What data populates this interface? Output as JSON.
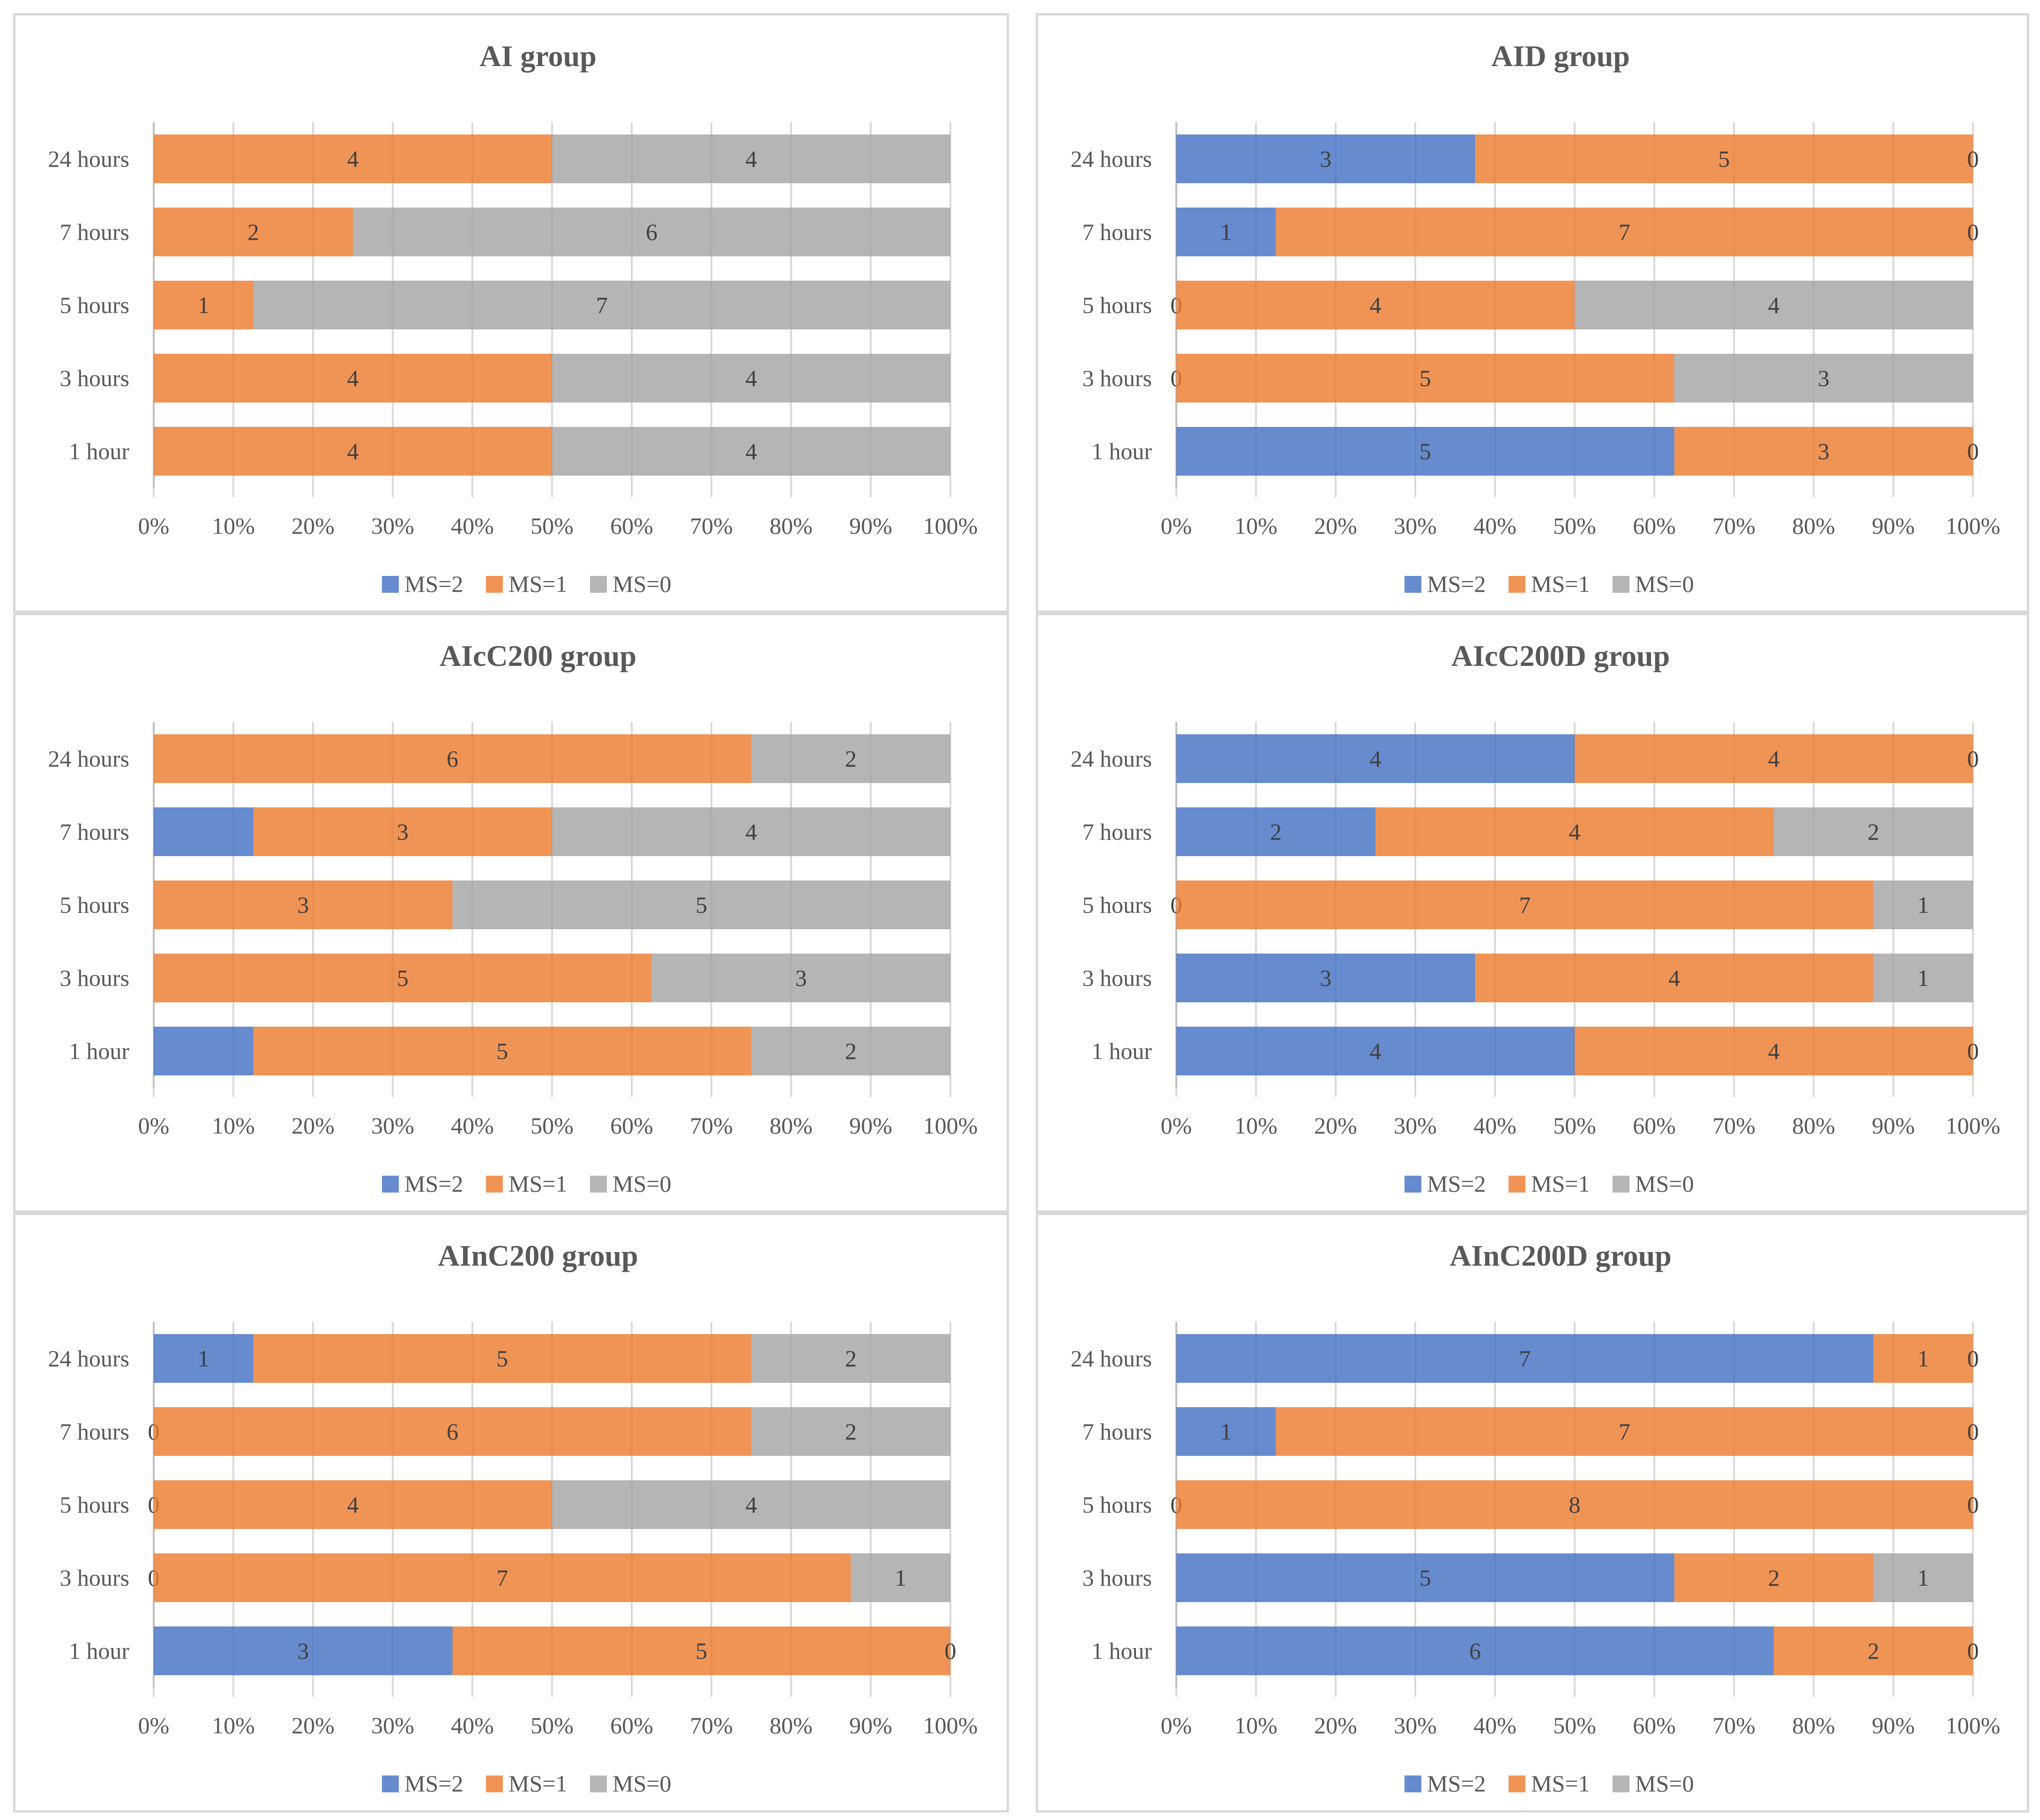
{
  "axis_ticks": [
    "0%",
    "10%",
    "20%",
    "30%",
    "40%",
    "50%",
    "60%",
    "70%",
    "80%",
    "90%",
    "100%"
  ],
  "legend": [
    {
      "label": "MS=2",
      "color": "#4472c4"
    },
    {
      "label": "MS=1",
      "color": "#ed7d31"
    },
    {
      "label": "MS=0",
      "color": "#a5a5a5"
    }
  ],
  "chart_data": [
    {
      "type": "bar",
      "stacked": "percent",
      "orientation": "horizontal",
      "title": "AI group",
      "categories": [
        "24 hours",
        "7 hours",
        "5 hours",
        "3 hours",
        "1 hour"
      ],
      "series": [
        {
          "name": "MS=2",
          "values": [
            null,
            null,
            null,
            null,
            null
          ],
          "labels": [
            "",
            "",
            "",
            "",
            ""
          ]
        },
        {
          "name": "MS=1",
          "values": [
            4,
            2,
            1,
            4,
            4
          ],
          "labels": [
            "4",
            "2",
            "1",
            "4",
            "4"
          ]
        },
        {
          "name": "MS=0",
          "values": [
            4,
            6,
            7,
            4,
            4
          ],
          "labels": [
            "4",
            "6",
            "7",
            "4",
            "4"
          ]
        }
      ],
      "xlim": [
        0,
        100
      ],
      "legend": "bottom"
    },
    {
      "type": "bar",
      "stacked": "percent",
      "orientation": "horizontal",
      "title": "AID group",
      "categories": [
        "24 hours",
        "7 hours",
        "5 hours",
        "3 hours",
        "1 hour"
      ],
      "series": [
        {
          "name": "MS=2",
          "values": [
            3,
            1,
            0,
            0,
            5
          ],
          "labels": [
            "3",
            "1",
            "0",
            "0",
            "5"
          ]
        },
        {
          "name": "MS=1",
          "values": [
            5,
            7,
            4,
            5,
            3
          ],
          "labels": [
            "5",
            "7",
            "4",
            "5",
            "3"
          ]
        },
        {
          "name": "MS=0",
          "values": [
            0,
            0,
            4,
            3,
            0
          ],
          "labels": [
            "0",
            "0",
            "4",
            "3",
            "0"
          ]
        }
      ],
      "xlim": [
        0,
        100
      ],
      "legend": "bottom"
    },
    {
      "type": "bar",
      "stacked": "percent",
      "orientation": "horizontal",
      "title": "AIcC200 group",
      "categories": [
        "24 hours",
        "7 hours",
        "5 hours",
        "3 hours",
        "1 hour"
      ],
      "series": [
        {
          "name": "MS=2",
          "values": [
            null,
            1,
            null,
            null,
            1
          ],
          "labels": [
            "",
            "",
            "",
            "",
            ""
          ]
        },
        {
          "name": "MS=1",
          "values": [
            6,
            3,
            3,
            5,
            5
          ],
          "labels": [
            "6",
            "3",
            "3",
            "5",
            "5"
          ]
        },
        {
          "name": "MS=0",
          "values": [
            2,
            4,
            5,
            3,
            2
          ],
          "labels": [
            "2",
            "4",
            "5",
            "3",
            "2"
          ]
        }
      ],
      "xlim": [
        0,
        100
      ],
      "legend": "bottom"
    },
    {
      "type": "bar",
      "stacked": "percent",
      "orientation": "horizontal",
      "title": "AIcC200D group",
      "categories": [
        "24 hours",
        "7 hours",
        "5 hours",
        "3 hours",
        "1 hour"
      ],
      "series": [
        {
          "name": "MS=2",
          "values": [
            4,
            2,
            0,
            3,
            4
          ],
          "labels": [
            "4",
            "2",
            "0",
            "3",
            "4"
          ]
        },
        {
          "name": "MS=1",
          "values": [
            4,
            4,
            7,
            4,
            4
          ],
          "labels": [
            "4",
            "4",
            "7",
            "4",
            "4"
          ]
        },
        {
          "name": "MS=0",
          "values": [
            0,
            2,
            1,
            1,
            0
          ],
          "labels": [
            "0",
            "2",
            "1",
            "1",
            "0"
          ]
        }
      ],
      "xlim": [
        0,
        100
      ],
      "legend": "bottom"
    },
    {
      "type": "bar",
      "stacked": "percent",
      "orientation": "horizontal",
      "title": "AInC200 group",
      "categories": [
        "24 hours",
        "7 hours",
        "5 hours",
        "3 hours",
        "1 hour"
      ],
      "series": [
        {
          "name": "MS=2",
          "values": [
            1,
            0,
            0,
            0,
            3
          ],
          "labels": [
            "1",
            "0",
            "0",
            "0",
            "3"
          ]
        },
        {
          "name": "MS=1",
          "values": [
            5,
            6,
            4,
            7,
            5
          ],
          "labels": [
            "5",
            "6",
            "4",
            "7",
            "5"
          ]
        },
        {
          "name": "MS=0",
          "values": [
            2,
            2,
            4,
            1,
            0
          ],
          "labels": [
            "2",
            "2",
            "4",
            "1",
            "0"
          ]
        }
      ],
      "xlim": [
        0,
        100
      ],
      "legend": "bottom"
    },
    {
      "type": "bar",
      "stacked": "percent",
      "orientation": "horizontal",
      "title": "AInC200D group",
      "categories": [
        "24 hours",
        "7 hours",
        "5 hours",
        "3 hours",
        "1 hour"
      ],
      "series": [
        {
          "name": "MS=2",
          "values": [
            7,
            1,
            0,
            5,
            6
          ],
          "labels": [
            "7",
            "1",
            "0",
            "5",
            "6"
          ]
        },
        {
          "name": "MS=1",
          "values": [
            1,
            7,
            8,
            2,
            2
          ],
          "labels": [
            "1",
            "7",
            "8",
            "2",
            "2"
          ]
        },
        {
          "name": "MS=0",
          "values": [
            0,
            0,
            0,
            1,
            0
          ],
          "labels": [
            "0",
            "0",
            "0",
            "1",
            "0"
          ]
        }
      ],
      "xlim": [
        0,
        100
      ],
      "legend": "bottom"
    }
  ]
}
